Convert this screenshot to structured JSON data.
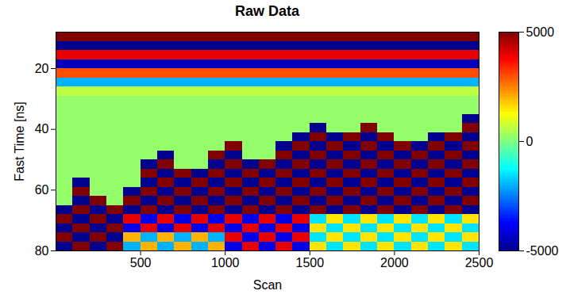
{
  "chart_data": {
    "type": "heatmap",
    "title": "Raw Data",
    "x_label": "Scan",
    "y_label": "Fast Time [ns]",
    "xlim": [
      0,
      2500
    ],
    "xticks": [
      500,
      1000,
      1500,
      2000,
      2500
    ],
    "ylim": [
      8,
      80
    ],
    "yticks": [
      20,
      40,
      60,
      80
    ],
    "x_bins": [
      0,
      100,
      200,
      300,
      400,
      500,
      600,
      700,
      800,
      900,
      1000,
      1100,
      1200,
      1300,
      1400,
      1500,
      1600,
      1700,
      1800,
      1900,
      2000,
      2100,
      2200,
      2300,
      2400,
      2500
    ],
    "y_bins": [
      8,
      11,
      14,
      17,
      20,
      23,
      26,
      29,
      32,
      35,
      38,
      41,
      44,
      47,
      50,
      53,
      56,
      59,
      62,
      65,
      68,
      71,
      74,
      77,
      80
    ],
    "cells": [
      [
        5000,
        5000,
        5000,
        5000,
        5000,
        5000,
        5000,
        5000,
        5000,
        5000,
        5000,
        5000,
        5000,
        5000,
        5000,
        5000,
        5000,
        5000,
        5000,
        5000,
        5000,
        5000,
        5000,
        5000,
        5000
      ],
      [
        -5000,
        -5000,
        -5000,
        -5000,
        -5000,
        -5000,
        -5000,
        -5000,
        -5000,
        -5000,
        -5000,
        -5000,
        -5000,
        -5000,
        -5000,
        -5000,
        -5000,
        -5000,
        -5000,
        -5000,
        -5000,
        -5000,
        -5000,
        -5000,
        -5000
      ],
      [
        4000,
        4000,
        4000,
        4000,
        4000,
        4000,
        4000,
        4000,
        4000,
        4000,
        4000,
        4000,
        4000,
        4000,
        4000,
        4000,
        4000,
        4000,
        4000,
        4000,
        4000,
        4000,
        4000,
        4000,
        4000
      ],
      [
        -4500,
        -4500,
        -4500,
        -4500,
        -4500,
        -4500,
        -4500,
        -4500,
        -4500,
        -4500,
        -4500,
        -4500,
        -4500,
        -4500,
        -4500,
        -4500,
        -4500,
        -4500,
        -4500,
        -4500,
        -4500,
        -4500,
        -4500,
        -4500,
        -4500
      ],
      [
        3000,
        3000,
        3000,
        3000,
        3000,
        3000,
        3000,
        3000,
        3000,
        3000,
        3000,
        3000,
        3000,
        3000,
        3000,
        3000,
        3000,
        3000,
        3000,
        3000,
        3000,
        3000,
        3000,
        3000,
        3000
      ],
      [
        -2000,
        -2000,
        -2000,
        -2000,
        -2000,
        -2000,
        -2000,
        -2000,
        -2000,
        -2000,
        -2000,
        -2000,
        -2000,
        -2000,
        -2000,
        -2000,
        -2000,
        -2000,
        -2000,
        -2000,
        -2000,
        -2000,
        -2000,
        -2000,
        -2000
      ],
      [
        600,
        600,
        600,
        600,
        600,
        600,
        600,
        600,
        600,
        600,
        600,
        600,
        600,
        600,
        600,
        600,
        600,
        600,
        600,
        600,
        600,
        600,
        600,
        600,
        600
      ],
      [
        200,
        200,
        200,
        200,
        200,
        200,
        200,
        200,
        200,
        200,
        200,
        200,
        200,
        200,
        200,
        200,
        200,
        200,
        200,
        200,
        200,
        200,
        200,
        200,
        200
      ],
      [
        200,
        200,
        200,
        200,
        200,
        200,
        200,
        200,
        200,
        200,
        200,
        200,
        200,
        200,
        200,
        200,
        200,
        200,
        200,
        200,
        200,
        200,
        200,
        200,
        200
      ],
      [
        200,
        200,
        200,
        200,
        200,
        200,
        200,
        200,
        200,
        200,
        200,
        200,
        200,
        200,
        200,
        200,
        200,
        200,
        200,
        200,
        200,
        200,
        200,
        200,
        -5000
      ],
      [
        200,
        200,
        200,
        200,
        200,
        200,
        200,
        200,
        200,
        200,
        200,
        200,
        200,
        200,
        200,
        -5000,
        200,
        200,
        5000,
        200,
        200,
        200,
        200,
        200,
        5000
      ],
      [
        200,
        200,
        200,
        200,
        200,
        200,
        200,
        200,
        200,
        200,
        200,
        200,
        200,
        200,
        -5000,
        5000,
        -5000,
        5000,
        -5000,
        5000,
        200,
        200,
        -5000,
        5000,
        -5000
      ],
      [
        200,
        200,
        200,
        200,
        200,
        200,
        200,
        200,
        200,
        200,
        5000,
        200,
        200,
        -5000,
        5000,
        -5000,
        5000,
        -5000,
        5000,
        -5000,
        5000,
        -5000,
        5000,
        -5000,
        5000
      ],
      [
        200,
        200,
        200,
        200,
        200,
        200,
        -5000,
        200,
        200,
        5000,
        -5000,
        200,
        200,
        5000,
        -5000,
        5000,
        -5000,
        5000,
        -5000,
        5000,
        -5000,
        5000,
        -5000,
        5000,
        -5000
      ],
      [
        200,
        200,
        200,
        200,
        200,
        -5000,
        5000,
        200,
        200,
        -5000,
        5000,
        -5000,
        5000,
        -5000,
        5000,
        -5000,
        5000,
        -5000,
        5000,
        -5000,
        5000,
        -5000,
        5000,
        -5000,
        5000
      ],
      [
        200,
        200,
        200,
        200,
        200,
        5000,
        -5000,
        5000,
        -5000,
        5000,
        -5000,
        5000,
        -5000,
        5000,
        -5000,
        5000,
        -5000,
        5000,
        -5000,
        5000,
        -5000,
        5000,
        -5000,
        5000,
        -5000
      ],
      [
        200,
        -5000,
        200,
        200,
        200,
        -5000,
        5000,
        -5000,
        5000,
        -5000,
        5000,
        -5000,
        5000,
        -5000,
        5000,
        -5000,
        5000,
        -5000,
        5000,
        -5000,
        5000,
        -5000,
        5000,
        -5000,
        5000
      ],
      [
        200,
        5000,
        200,
        200,
        -5000,
        5000,
        -5000,
        5000,
        -5000,
        5000,
        -5000,
        5000,
        -5000,
        5000,
        -5000,
        5000,
        -5000,
        5000,
        -5000,
        5000,
        -5000,
        5000,
        -5000,
        5000,
        -5000
      ],
      [
        200,
        -5000,
        5000,
        200,
        5000,
        -5000,
        5000,
        -5000,
        5000,
        -5000,
        5000,
        -5000,
        5000,
        -5000,
        5000,
        -5000,
        5000,
        -5000,
        5000,
        -5000,
        5000,
        -5000,
        5000,
        -5000,
        5000
      ],
      [
        -5000,
        5000,
        -5000,
        5000,
        -5000,
        5000,
        -5000,
        5000,
        -5000,
        5000,
        -5000,
        5000,
        -5000,
        5000,
        -5000,
        5000,
        -5000,
        5000,
        -5000,
        5000,
        -5000,
        5000,
        -5000,
        5000,
        -5000
      ],
      [
        5000,
        -5000,
        5000,
        -5000,
        4000,
        -4000,
        4000,
        -4000,
        4000,
        -4000,
        4000,
        -4000,
        4000,
        -4000,
        4000,
        -1500,
        1500,
        -1500,
        1500,
        -1500,
        1500,
        -1500,
        1500,
        -1500,
        1500
      ],
      [
        -5000,
        5000,
        -5000,
        5000,
        -4000,
        4000,
        -4000,
        4000,
        -4000,
        4000,
        -4000,
        4000,
        -4000,
        4000,
        -4000,
        1500,
        -1500,
        1500,
        -1500,
        1500,
        -1500,
        1500,
        -1500,
        1500,
        -1500
      ],
      [
        5000,
        -5000,
        5000,
        -5000,
        2000,
        -2000,
        2000,
        -2000,
        2000,
        -2000,
        4000,
        -4000,
        4000,
        -4000,
        4000,
        -1500,
        1500,
        -1500,
        1500,
        -1500,
        1500,
        -1500,
        1500,
        -1500,
        1500
      ],
      [
        -5000,
        5000,
        -5000,
        5000,
        -2000,
        2000,
        -2000,
        2000,
        -2000,
        2000,
        -4000,
        4000,
        -4000,
        4000,
        -4000,
        1500,
        -1500,
        1500,
        -1500,
        1500,
        -1500,
        1500,
        -1500,
        1500,
        -1500
      ]
    ],
    "colorbar": {
      "range": [
        -5000,
        5000
      ],
      "ticks": [
        -5000,
        0,
        5000
      ]
    }
  }
}
